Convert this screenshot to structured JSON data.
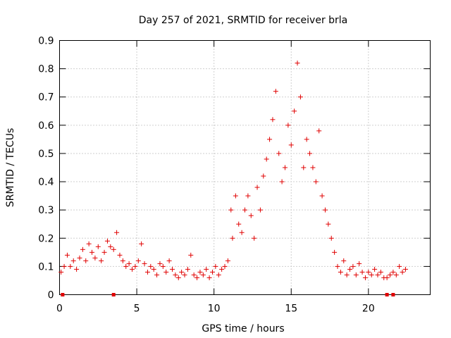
{
  "chart_data": {
    "type": "scatter",
    "title": "Day 257 of 2021, SRMTID for receiver brla",
    "xlabel": "GPS time / hours",
    "ylabel": "SRMTID / TECUs",
    "xlim": [
      0,
      24
    ],
    "ylim": [
      0,
      0.9
    ],
    "xticks": [
      0,
      5,
      10,
      15,
      20
    ],
    "xtick_labels": [
      "0",
      "5",
      "10",
      "15",
      "20"
    ],
    "yticks": [
      0,
      0.1,
      0.2,
      0.3,
      0.4,
      0.5,
      0.6,
      0.7,
      0.8,
      0.9
    ],
    "ytick_labels": [
      "0",
      "0.1",
      "0.2",
      "0.3",
      "0.4",
      "0.5",
      "0.6",
      "0.7",
      "0.8",
      "0.9"
    ],
    "grid": true,
    "marker": "+",
    "color": "#e00000",
    "series": [
      {
        "name": "SRMTID",
        "x": [
          0.1,
          0.3,
          0.5,
          0.7,
          0.9,
          1.1,
          1.3,
          1.5,
          1.7,
          1.9,
          2.1,
          2.3,
          2.5,
          2.7,
          2.9,
          3.1,
          3.3,
          3.5,
          3.7,
          3.9,
          4.1,
          4.3,
          4.5,
          4.7,
          4.9,
          5.1,
          5.3,
          5.5,
          5.7,
          5.9,
          6.1,
          6.3,
          6.5,
          6.7,
          6.9,
          7.1,
          7.3,
          7.5,
          7.7,
          7.9,
          8.1,
          8.3,
          8.5,
          8.7,
          8.9,
          9.1,
          9.3,
          9.5,
          9.7,
          9.9,
          10.1,
          10.3,
          10.5,
          10.7,
          10.9,
          11.1,
          11.2,
          11.4,
          11.6,
          11.8,
          12.0,
          12.2,
          12.4,
          12.6,
          12.8,
          13.0,
          13.2,
          13.4,
          13.6,
          13.8,
          14.0,
          14.2,
          14.4,
          14.6,
          14.8,
          15.0,
          15.2,
          15.4,
          15.6,
          15.8,
          16.0,
          16.2,
          16.4,
          16.6,
          16.8,
          17.0,
          17.2,
          17.4,
          17.6,
          17.8,
          18.0,
          18.2,
          18.4,
          18.6,
          18.8,
          19.0,
          19.2,
          19.4,
          19.6,
          19.8,
          20.0,
          20.2,
          20.4,
          20.6,
          20.8,
          21.0,
          21.2,
          21.4,
          21.6,
          21.8,
          22.0,
          22.2,
          22.4
        ],
        "y": [
          0.08,
          0.1,
          0.14,
          0.1,
          0.12,
          0.09,
          0.13,
          0.16,
          0.12,
          0.18,
          0.15,
          0.13,
          0.17,
          0.12,
          0.15,
          0.19,
          0.17,
          0.16,
          0.22,
          0.14,
          0.12,
          0.1,
          0.11,
          0.09,
          0.1,
          0.12,
          0.18,
          0.11,
          0.08,
          0.1,
          0.09,
          0.07,
          0.11,
          0.1,
          0.08,
          0.12,
          0.09,
          0.07,
          0.06,
          0.08,
          0.07,
          0.09,
          0.14,
          0.07,
          0.06,
          0.08,
          0.07,
          0.09,
          0.06,
          0.08,
          0.1,
          0.07,
          0.09,
          0.1,
          0.12,
          0.3,
          0.2,
          0.35,
          0.25,
          0.22,
          0.3,
          0.35,
          0.28,
          0.2,
          0.38,
          0.3,
          0.42,
          0.48,
          0.55,
          0.62,
          0.72,
          0.5,
          0.4,
          0.45,
          0.6,
          0.53,
          0.65,
          0.82,
          0.7,
          0.45,
          0.55,
          0.5,
          0.45,
          0.4,
          0.58,
          0.35,
          0.3,
          0.25,
          0.2,
          0.15,
          0.1,
          0.08,
          0.12,
          0.07,
          0.09,
          0.1,
          0.07,
          0.11,
          0.08,
          0.06,
          0.08,
          0.07,
          0.09,
          0.07,
          0.08,
          0.06,
          0.06,
          0.07,
          0.08,
          0.07,
          0.1,
          0.08,
          0.09
        ]
      }
    ],
    "zero_points_x": [
      0.2,
      3.5,
      21.2,
      21.6
    ]
  }
}
